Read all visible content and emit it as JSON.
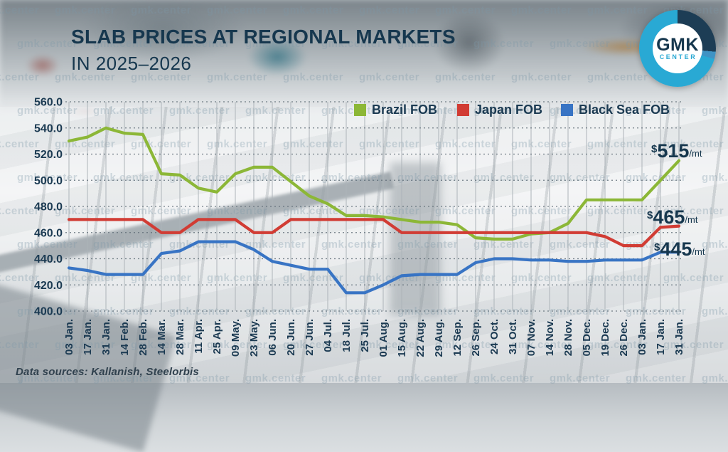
{
  "title_line1": "SLAB PRICES AT REGIONAL MARKETS",
  "title_line2": "IN 2025–2026",
  "watermark": "gmk.center",
  "footer": "Data sources: Kallanish, Steelorbis",
  "logo": {
    "top": "GMK",
    "bottom": "CENTER"
  },
  "colors": {
    "brazil": "#8cb737",
    "japan": "#d13c34",
    "black_sea": "#3874c4",
    "text": "#1b3a52",
    "logo_cyan": "#29a9d4",
    "logo_navy": "#1d3d55",
    "grid_vertical": "#adb4b9",
    "grid_horizontal": "#5c6a74"
  },
  "end_labels": [
    {
      "prefix": "$",
      "value": "515",
      "suffix": "/mt"
    },
    {
      "prefix": "$",
      "value": "465",
      "suffix": "/mt"
    },
    {
      "prefix": "$",
      "value": "445",
      "suffix": "/mt"
    }
  ],
  "chart_data": {
    "type": "line",
    "title": "Slab prices at regional markets in 2025-2026, $/mt",
    "xlabel": "",
    "ylabel": "",
    "ylim": [
      400,
      560
    ],
    "ytick_labels": [
      "560.0",
      "540.0",
      "520.0",
      "500.0",
      "480.0",
      "460.0",
      "440.0",
      "420.0",
      "400.0"
    ],
    "yticks": [
      560,
      540,
      520,
      500,
      480,
      460,
      440,
      420,
      400
    ],
    "grid": "horizontal-dotted, vertical-solid",
    "legend_position": "top",
    "categories": [
      "03 Jan.",
      "17 Jan.",
      "31 Jan.",
      "14 Feb.",
      "28 Feb.",
      "14 Mar.",
      "28 Mar.",
      "11 Apr.",
      "25 Apr.",
      "09 May.",
      "23 May.",
      "06 Jun.",
      "20 Jun.",
      "27 Jun.",
      "04 Jul.",
      "18 Jul.",
      "25 Jul.",
      "01 Aug.",
      "15 Aug.",
      "22 Aug.",
      "29 Aug.",
      "12 Sep.",
      "26 Sep.",
      "24 Oct.",
      "31 Oct.",
      "07 Nov.",
      "14 Nov.",
      "28 Nov.",
      "05 Dec.",
      "19 Dec.",
      "26 Dec.",
      "03 Jan.",
      "17 Jan.",
      "31 Jan."
    ],
    "series": [
      {
        "name": "Brazil FOB",
        "color_key": "brazil",
        "values": [
          530,
          533,
          540,
          536,
          535,
          505,
          504,
          494,
          491,
          505,
          510,
          510,
          499,
          488,
          482,
          473,
          473,
          472,
          470,
          468,
          468,
          466,
          456,
          455,
          455,
          459,
          460,
          467,
          485,
          485,
          485,
          485,
          500,
          515
        ]
      },
      {
        "name": "Japan FOB",
        "color_key": "japan",
        "values": [
          470,
          470,
          470,
          470,
          470,
          460,
          460,
          470,
          470,
          470,
          460,
          460,
          470,
          470,
          470,
          470,
          470,
          470,
          460,
          460,
          460,
          460,
          460,
          460,
          460,
          460,
          460,
          460,
          460,
          457,
          450,
          450,
          464,
          465
        ]
      },
      {
        "name": "Black Sea FOB",
        "color_key": "black_sea",
        "values": [
          433,
          431,
          428,
          428,
          428,
          444,
          446,
          453,
          453,
          453,
          447,
          438,
          435,
          432,
          432,
          414,
          414,
          420,
          427,
          428,
          428,
          428,
          437,
          440,
          440,
          439,
          439,
          438,
          438,
          439,
          439,
          439,
          445,
          445
        ]
      }
    ]
  }
}
